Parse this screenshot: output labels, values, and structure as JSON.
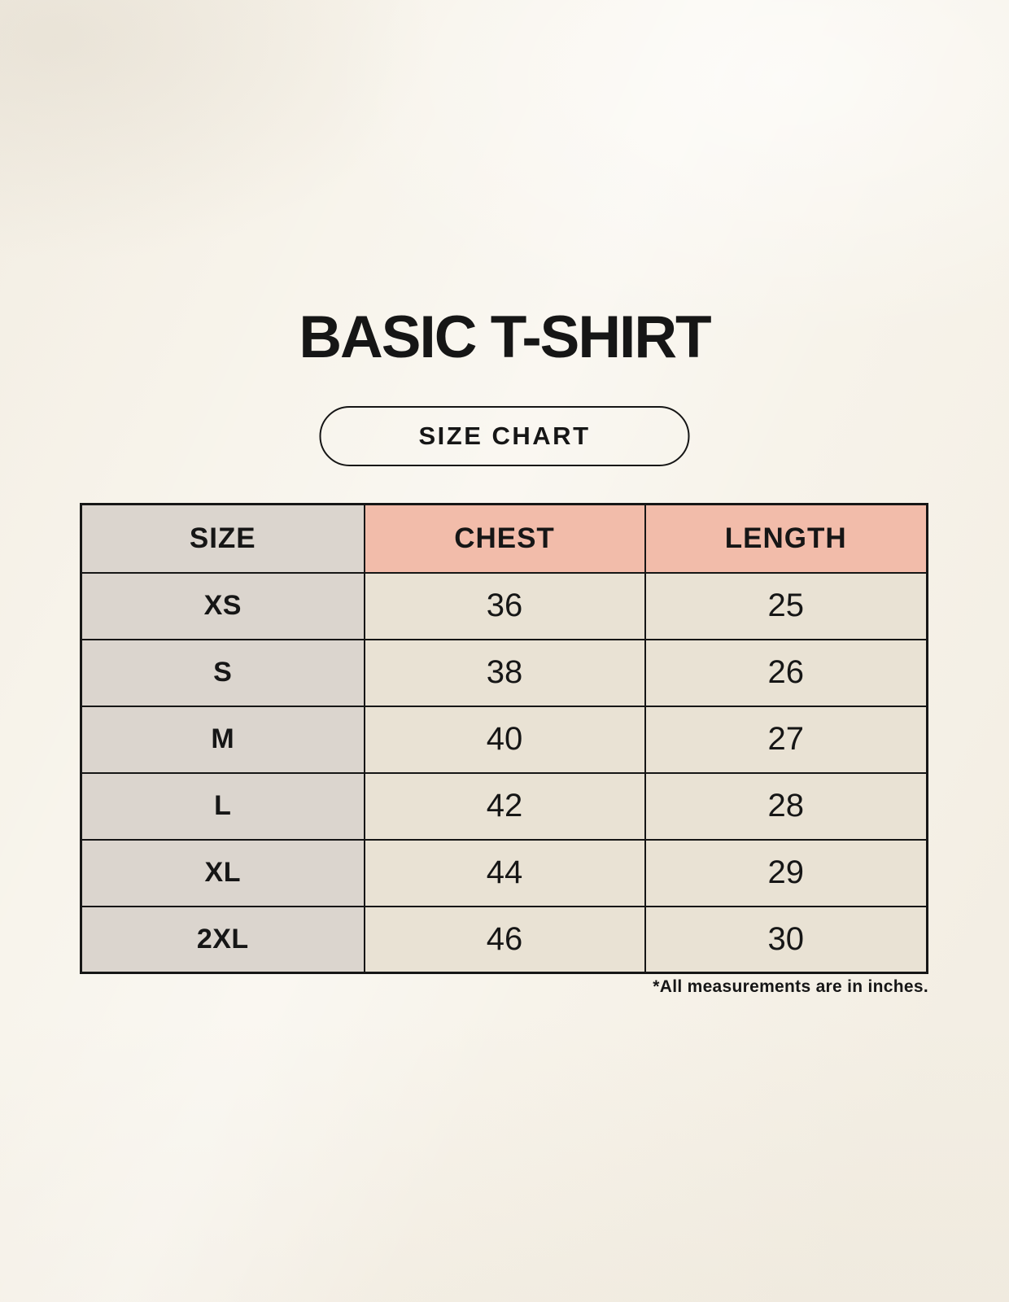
{
  "page": {
    "title": "BASIC T-SHIRT",
    "size_chart_button_label": "SIZE CHART",
    "footnote": "*All measurements are in inches."
  },
  "table": {
    "columns": [
      "SIZE",
      "CHEST",
      "LENGTH"
    ],
    "rows": [
      {
        "size": "XS",
        "chest": "36",
        "length": "25"
      },
      {
        "size": "S",
        "chest": "38",
        "length": "26"
      },
      {
        "size": "M",
        "chest": "40",
        "length": "27"
      },
      {
        "size": "L",
        "chest": "42",
        "length": "28"
      },
      {
        "size": "XL",
        "chest": "44",
        "length": "29"
      },
      {
        "size": "2XL",
        "chest": "46",
        "length": "30"
      }
    ]
  },
  "colors": {
    "background": "#f7f3ea",
    "label_bg": "#dbd5ce",
    "measure_bg": "#f2bcaa",
    "value_bg": "#e9e2d4",
    "border": "#161616",
    "text": "#161616"
  }
}
